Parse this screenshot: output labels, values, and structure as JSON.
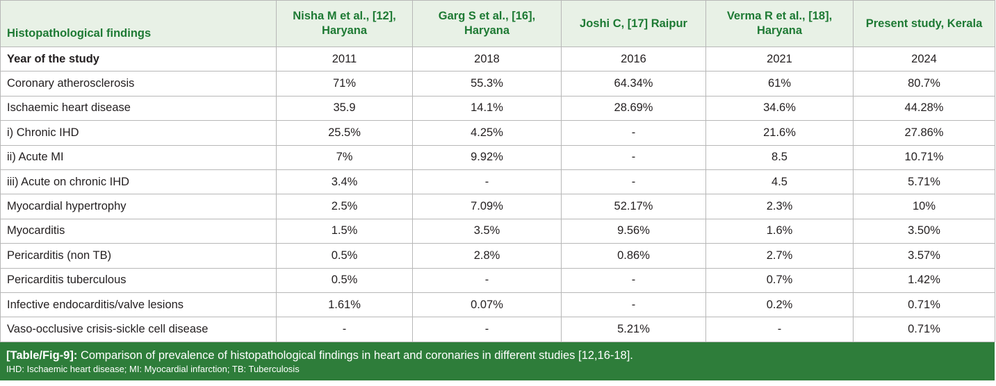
{
  "table": {
    "headers": [
      "Histopathological findings",
      "Nisha M et al., [12], Haryana",
      "Garg S et al., [16], Haryana",
      "Joshi C, [17] Raipur",
      "Verma R et al., [18], Haryana",
      "Present study, Kerala"
    ],
    "header_lines": [
      [
        "Histopathological findings"
      ],
      [
        "Nisha M et al., [12],",
        "Haryana"
      ],
      [
        "Garg S et al., [16],",
        "Haryana"
      ],
      [
        "Joshi C, [17] Raipur"
      ],
      [
        "Verma R et al., [18],",
        "Haryana"
      ],
      [
        "Present study, Kerala"
      ]
    ],
    "rows": [
      [
        "Year of the study",
        "2011",
        "2018",
        "2016",
        "2021",
        "2024"
      ],
      [
        "Coronary atherosclerosis",
        "71%",
        "55.3%",
        "64.34%",
        "61%",
        "80.7%"
      ],
      [
        "Ischaemic heart disease",
        "35.9",
        "14.1%",
        "28.69%",
        "34.6%",
        "44.28%"
      ],
      [
        " i) Chronic IHD",
        "25.5%",
        "4.25%",
        "-",
        "21.6%",
        "27.86%"
      ],
      [
        " ii) Acute MI",
        "7%",
        "9.92%",
        "-",
        "8.5",
        "10.71%"
      ],
      [
        " iii) Acute on chronic IHD",
        "3.4%",
        "-",
        "-",
        "4.5",
        "5.71%"
      ],
      [
        "Myocardial hypertrophy",
        "2.5%",
        "7.09%",
        "52.17%",
        "2.3%",
        "10%"
      ],
      [
        "Myocarditis",
        "1.5%",
        "3.5%",
        "9.56%",
        "1.6%",
        "3.50%"
      ],
      [
        "Pericarditis (non TB)",
        "0.5%",
        "2.8%",
        "0.86%",
        "2.7%",
        "3.57%"
      ],
      [
        "Pericarditis tuberculous",
        "0.5%",
        "-",
        "-",
        "0.7%",
        "1.42%"
      ],
      [
        "Infective endocarditis/valve lesions",
        "1.61%",
        "0.07%",
        "-",
        "0.2%",
        "0.71%"
      ],
      [
        "Vaso-occlusive crisis-sickle cell disease",
        "-",
        "-",
        "5.21%",
        "-",
        "0.71%"
      ]
    ]
  },
  "caption": {
    "tag": "[Table/Fig-9]:",
    "text": "Comparison of prevalence of histopathological findings in heart and coronaries in different studies [12,16-18].",
    "footnote": "IHD: Ischaemic heart disease; MI: Myocardial infarction; TB: Tuberculosis"
  },
  "colors": {
    "header_bg": "#e8f1e6",
    "header_text": "#1e7a34",
    "caption_bg": "#2e7d3a",
    "border": "#b7b7b7"
  }
}
